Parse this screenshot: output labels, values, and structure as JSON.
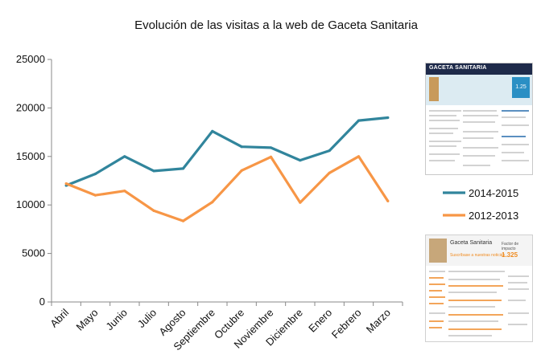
{
  "chart_data": {
    "type": "line",
    "title": "Evolución de las visitas a la web de Gaceta Sanitaria",
    "categories": [
      "Abril",
      "Mayo",
      "Junio",
      "Julio",
      "Agosto",
      "Septiembre",
      "Octubre",
      "Noviembre",
      "Diciembre",
      "Enero",
      "Febrero",
      "Marzo"
    ],
    "ylim": [
      0,
      25000
    ],
    "yticks": [
      0,
      5000,
      10000,
      15000,
      20000,
      25000
    ],
    "grid": false,
    "legend_position": "right",
    "series": [
      {
        "name": "2014-2015",
        "color": "#31859c",
        "values": [
          12000,
          13200,
          15000,
          13500,
          13750,
          17600,
          16000,
          15900,
          14600,
          15600,
          18700,
          19000
        ]
      },
      {
        "name": "2012-2013",
        "color": "#f79646",
        "values": [
          12200,
          11000,
          11450,
          9400,
          8350,
          10300,
          13550,
          14950,
          10250,
          13300,
          15000,
          10400
        ]
      }
    ]
  },
  "thumbnails": {
    "top": {
      "brand": "GACETA SANITARIA",
      "factor": "1.25"
    },
    "bottom": {
      "brand": "Gaceta Sanitaria",
      "subtitle": "Suscríbase a nuestras noticias",
      "impact_label": "Factor de impacto",
      "impact_value": "1.325"
    }
  }
}
